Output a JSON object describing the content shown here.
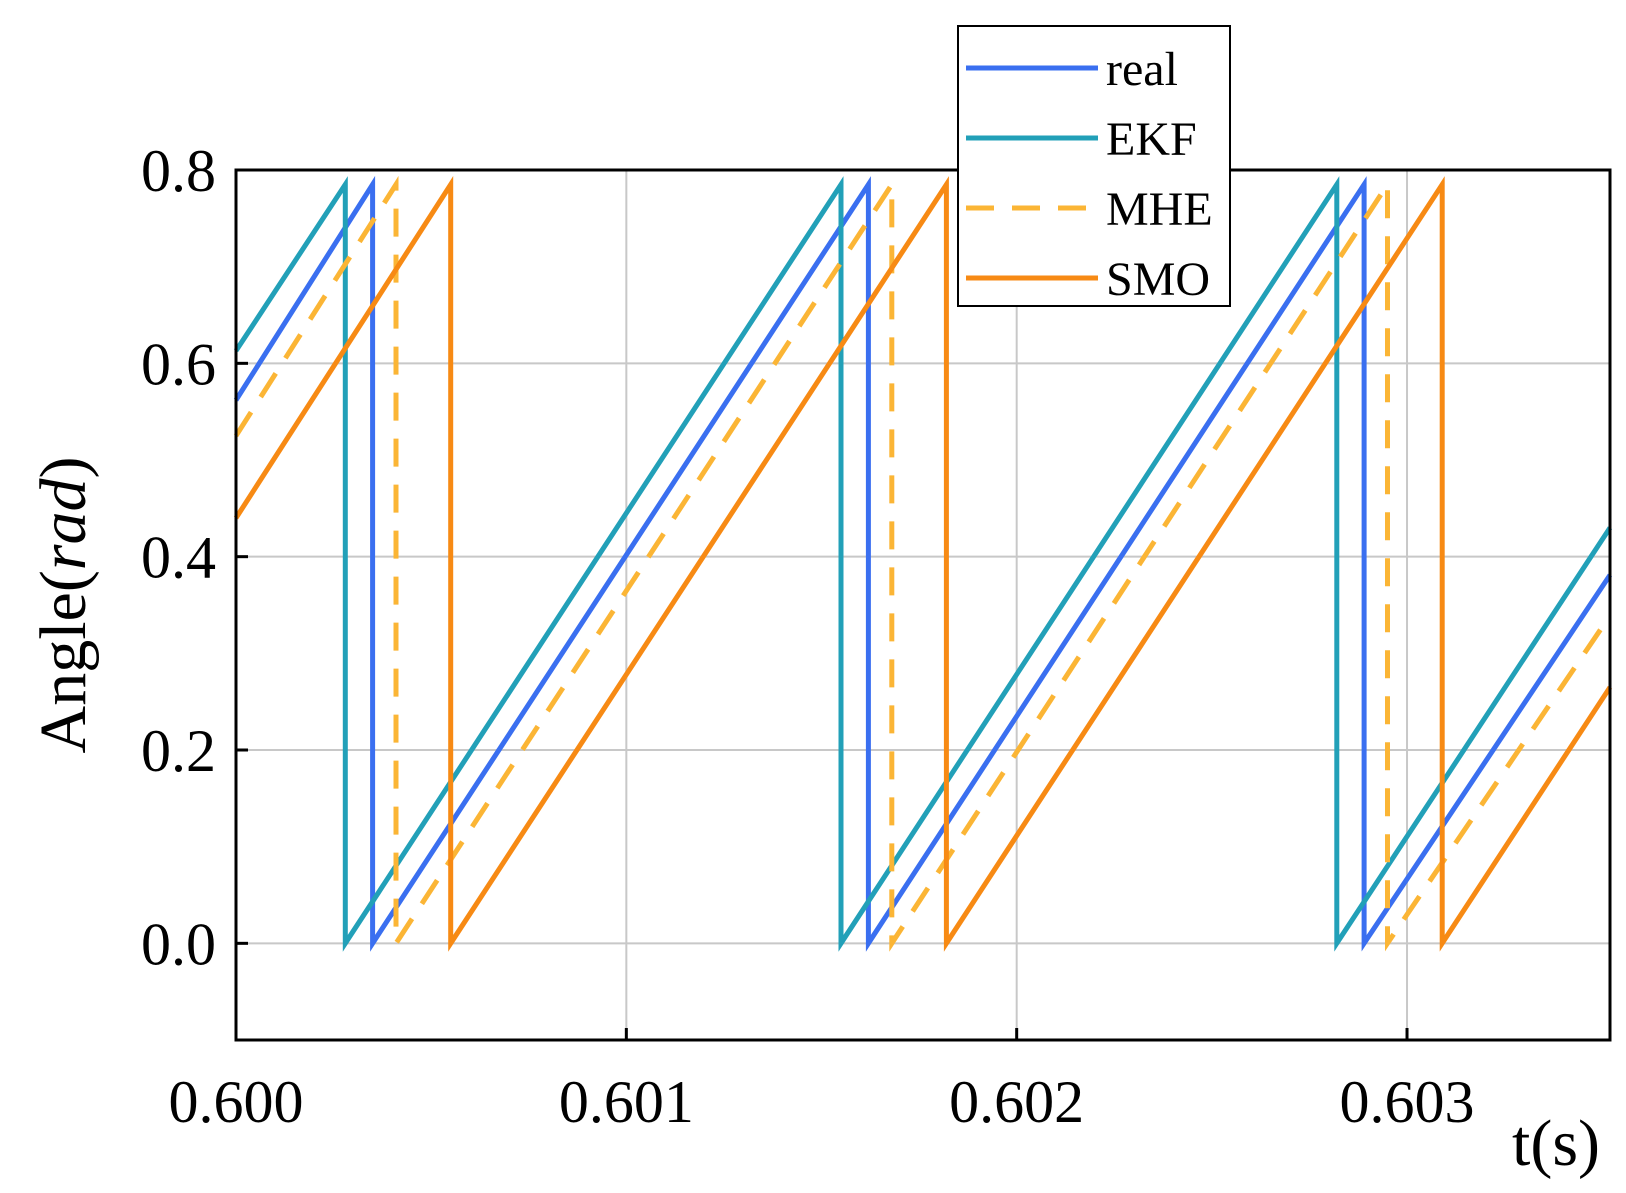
{
  "chart_data": {
    "type": "line",
    "xlabel": "t(s)",
    "ylabel_main": "Angle(",
    "ylabel_italic": "rad",
    "ylabel_close": ")",
    "xlim": [
      0.6,
      0.60352
    ],
    "ylim": [
      -0.1,
      0.8
    ],
    "xticks": [
      0.6,
      0.601,
      0.602,
      0.603
    ],
    "xtick_labels": [
      "0.600",
      "0.601",
      "0.602",
      "0.603"
    ],
    "yticks": [
      0.0,
      0.2,
      0.4,
      0.6,
      0.8
    ],
    "ytick_labels": [
      "0.0",
      "0.2",
      "0.4",
      "0.6",
      "0.8"
    ],
    "grid": true,
    "legend_position": "top-right, above plot",
    "series": [
      {
        "name": "real",
        "color": "#3a6ff0",
        "dash": "solid",
        "x": [
          0.6,
          0.60035,
          0.60035,
          0.60162,
          0.60162,
          0.60289,
          0.60289,
          0.60352
        ],
        "y": [
          0.562,
          0.785,
          0.0,
          0.785,
          0.0,
          0.785,
          0.0,
          0.381
        ]
      },
      {
        "name": "EKF",
        "color": "#22a0b8",
        "dash": "solid",
        "x": [
          0.6,
          0.60028,
          0.60028,
          0.60155,
          0.60155,
          0.60282,
          0.60282,
          0.60352
        ],
        "y": [
          0.613,
          0.785,
          0.0,
          0.785,
          0.0,
          0.785,
          0.0,
          0.43
        ]
      },
      {
        "name": "MHE",
        "color": "#fbb535",
        "dash": "dashed",
        "x": [
          0.6,
          0.60041,
          0.60041,
          0.60168,
          0.60168,
          0.60295,
          0.60295,
          0.60352
        ],
        "y": [
          0.525,
          0.785,
          0.0,
          0.785,
          0.0,
          0.785,
          0.0,
          0.339
        ]
      },
      {
        "name": "SMO",
        "color": "#f78a14",
        "dash": "solid",
        "x": [
          0.6,
          0.60055,
          0.60055,
          0.60182,
          0.60182,
          0.60309,
          0.60309,
          0.60352
        ],
        "y": [
          0.44,
          0.785,
          0.0,
          0.785,
          0.0,
          0.785,
          0.0,
          0.265
        ]
      }
    ]
  }
}
